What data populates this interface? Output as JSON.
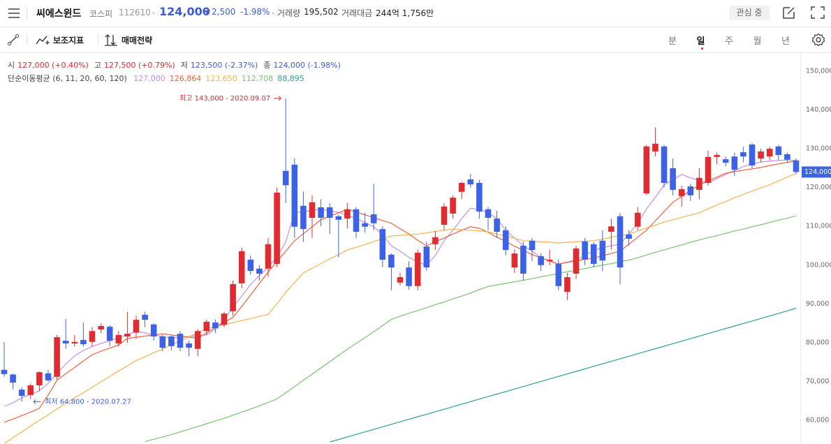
{
  "header": {
    "name": "씨에스윈드",
    "market": "코스피",
    "code": "112610",
    "price": "124,000",
    "change": "2,500",
    "change_pct": "-1.98%",
    "volume_label": "거래량",
    "volume": "195,502",
    "amount_label": "거래대금",
    "amount": "244억 1,756만",
    "watch_button": "관심 중"
  },
  "toolbar": {
    "indicators": "보조지표",
    "strategy": "매매전략",
    "periods": [
      "분",
      "일",
      "주",
      "월",
      "년"
    ],
    "selected_period": 1
  },
  "ohlc_row": {
    "items": [
      {
        "label": "시",
        "value": "127,000 (+0.40%)",
        "color": "#e0262e"
      },
      {
        "label": "고",
        "value": "127,500 (+0.79%)",
        "color": "#e0262e"
      },
      {
        "label": "저",
        "value": "123,500 (-2.37%)",
        "color": "#3a5bd9"
      },
      {
        "label": "종",
        "value": "124,000 (-1.98%)",
        "color": "#3a5bd9"
      }
    ]
  },
  "chart_data": {
    "type": "candlestick",
    "up_color": "#e02b31",
    "down_color": "#3c63e6",
    "ylim": [
      53880,
      154680
    ],
    "yticks": [
      {
        "value": 60000,
        "label": "60,000"
      },
      {
        "value": 70000,
        "label": "70,000"
      },
      {
        "value": 80000,
        "label": "80,000"
      },
      {
        "value": 90000,
        "label": "90,000"
      },
      {
        "value": 100000,
        "label": "100,000"
      },
      {
        "value": 110000,
        "label": "110,000"
      },
      {
        "value": 120000,
        "label": "120,000"
      },
      {
        "value": 130000,
        "label": "130,000"
      },
      {
        "value": 140000,
        "label": "140,000"
      },
      {
        "value": 150000,
        "label": "150,000"
      }
    ],
    "open": [
      73000,
      71800,
      67900,
      66500,
      69000,
      72100,
      71200,
      80500,
      79800,
      80700,
      80200,
      83400,
      84100,
      79800,
      81600,
      82600,
      87200,
      84700,
      81600,
      81600,
      82300,
      79800,
      78400,
      83000,
      85200,
      84600,
      88100,
      95300,
      101400,
      99100,
      99100,
      100300,
      124300,
      125900,
      115300,
      112200,
      114900,
      114900,
      112600,
      112000,
      114400,
      110800,
      113100,
      109300,
      102700,
      95500,
      99400,
      94600,
      104800,
      105400,
      110400,
      113300,
      118900,
      122100,
      121200,
      114400,
      112000,
      109000,
      99400,
      105000,
      106300,
      102300,
      101000,
      100300,
      93100,
      97800,
      106100,
      105400,
      106300,
      108600,
      112600,
      107900,
      109900,
      118500,
      129300,
      130600,
      125000,
      117800,
      120300,
      119400,
      121200,
      127900,
      127300,
      128000,
      129100,
      131100,
      127500,
      128000,
      130600,
      128600,
      127000
    ],
    "high": [
      80200,
      72000,
      68500,
      69500,
      72600,
      73000,
      82000,
      86100,
      82000,
      85200,
      84000,
      85000,
      84500,
      83000,
      88000,
      87000,
      88000,
      85000,
      82000,
      82000,
      83000,
      80500,
      83500,
      86000,
      86000,
      88000,
      96000,
      104500,
      102500,
      100000,
      107000,
      120000,
      143000,
      127500,
      119000,
      118000,
      117000,
      116000,
      113000,
      116000,
      115000,
      113500,
      121000,
      110000,
      103000,
      98000,
      101000,
      104000,
      106000,
      108800,
      116000,
      118000,
      121500,
      123500,
      122000,
      115000,
      114000,
      110000,
      104000,
      106000,
      107000,
      103000,
      104000,
      101500,
      98000,
      105000,
      107000,
      106000,
      109000,
      112000,
      113500,
      109000,
      115000,
      131000,
      135500,
      131000,
      127500,
      120500,
      121000,
      125000,
      129500,
      129000,
      128000,
      129000,
      130500,
      131500,
      130000,
      130500,
      131000,
      129000,
      127500
    ],
    "low": [
      71200,
      68000,
      64800,
      65500,
      67500,
      70000,
      70500,
      78400,
      79000,
      79000,
      79000,
      82500,
      79000,
      79000,
      80000,
      81000,
      84000,
      80500,
      77800,
      78000,
      77800,
      76500,
      76500,
      82000,
      82500,
      84000,
      87000,
      94000,
      97500,
      96000,
      97000,
      99500,
      116000,
      107000,
      106000,
      107000,
      110000,
      108000,
      102000,
      109500,
      107000,
      108400,
      109000,
      99500,
      93500,
      94800,
      93700,
      93500,
      98500,
      104000,
      109000,
      112000,
      117000,
      120000,
      112000,
      109000,
      107000,
      102500,
      98000,
      96000,
      101000,
      98500,
      100000,
      93500,
      91000,
      96500,
      100000,
      99500,
      98500,
      104000,
      95000,
      105000,
      109000,
      118000,
      128000,
      120000,
      118000,
      115000,
      116500,
      117000,
      120500,
      126000,
      125500,
      123000,
      126500,
      125000,
      126500,
      127000,
      127000,
      126500,
      123500
    ],
    "close": [
      71900,
      69700,
      66300,
      69000,
      72400,
      70300,
      81400,
      79800,
      80200,
      79600,
      83000,
      84300,
      80500,
      82000,
      82300,
      85900,
      85900,
      81600,
      78700,
      79100,
      78700,
      78700,
      83000,
      85400,
      83700,
      87500,
      95100,
      103600,
      98500,
      97800,
      105400,
      118700,
      120600,
      109900,
      109300,
      116200,
      112200,
      112200,
      111700,
      114400,
      108600,
      109900,
      110800,
      101400,
      99400,
      96900,
      94600,
      103200,
      99400,
      107200,
      115100,
      117400,
      121200,
      120800,
      113800,
      112200,
      108600,
      103900,
      103000,
      97800,
      103900,
      100000,
      101400,
      94600,
      96900,
      104300,
      101400,
      100300,
      101200,
      110000,
      99400,
      106800,
      113500,
      130600,
      131300,
      121200,
      119400,
      119600,
      118000,
      122500,
      127900,
      128400,
      126400,
      124600,
      128000,
      125700,
      129300,
      130000,
      128400,
      127200,
      124000
    ],
    "last_price_label": "124,000",
    "ma_label": "단순이동평균 (6, 11, 20, 60, 120)",
    "series": [
      {
        "color": "#c58df2",
        "last_label": "127,000",
        "values": [
          63600,
          64500,
          65800,
          66700,
          67600,
          69500,
          72000,
          74500,
          76600,
          78000,
          79000,
          79800,
          80500,
          81300,
          82100,
          82900,
          82500,
          82000,
          81600,
          81200,
          81400,
          81600,
          81800,
          82000,
          83500,
          86000,
          89200,
          92000,
          95000,
          97300,
          99500,
          102000,
          106000,
          113500,
          113800,
          114100,
          114400,
          114000,
          113600,
          112900,
          112000,
          111000,
          109900,
          107800,
          105000,
          103600,
          102000,
          100800,
          100000,
          102500,
          106300,
          109000,
          112000,
          114700,
          114300,
          113500,
          112000,
          109000,
          107000,
          105000,
          103600,
          102000,
          101000,
          100300,
          100800,
          101400,
          102500,
          103800,
          104500,
          105000,
          105400,
          108000,
          110800,
          114500,
          117500,
          120700,
          122000,
          123400,
          122500,
          121800,
          121200,
          122300,
          123400,
          124400,
          125400,
          126100,
          126600,
          126800,
          127000,
          127100,
          127000
        ]
      },
      {
        "color": "#f0603a",
        "last_label": "126,864",
        "values": [
          59500,
          60300,
          61200,
          62100,
          63100,
          66500,
          70300,
          72000,
          73600,
          75300,
          76900,
          77800,
          78600,
          79400,
          81100,
          81400,
          81700,
          82000,
          82300,
          82000,
          81700,
          81400,
          81200,
          82500,
          83900,
          85200,
          86500,
          89400,
          92300,
          95300,
          98200,
          100900,
          103600,
          106300,
          108100,
          109900,
          111700,
          112600,
          113500,
          114400,
          113700,
          113000,
          112200,
          111500,
          110800,
          109400,
          108000,
          106400,
          105000,
          106000,
          107000,
          108000,
          109000,
          109900,
          109500,
          108500,
          107200,
          106100,
          104900,
          103800,
          102700,
          101900,
          101100,
          100300,
          100700,
          101100,
          101500,
          101800,
          102400,
          103000,
          103600,
          105400,
          107200,
          109000,
          111400,
          113800,
          116200,
          117700,
          119200,
          120700,
          121700,
          122700,
          123700,
          124100,
          124500,
          124800,
          125200,
          125700,
          126100,
          126500,
          126864
        ]
      },
      {
        "color": "#f5b24a",
        "last_label": "123,650",
        "values": [
          54000,
          55500,
          57000,
          58500,
          60000,
          61400,
          62900,
          64400,
          65800,
          67100,
          68500,
          69900,
          71300,
          72700,
          74000,
          75400,
          76400,
          77400,
          78400,
          79500,
          80500,
          81500,
          82600,
          83600,
          84100,
          84600,
          85200,
          85700,
          86200,
          86800,
          87300,
          90000,
          93000,
          95500,
          98000,
          99200,
          100400,
          101600,
          102700,
          103900,
          104600,
          105300,
          106100,
          106800,
          107500,
          107700,
          107800,
          108000,
          108300,
          108700,
          109000,
          109300,
          109100,
          109000,
          108800,
          108600,
          108000,
          107500,
          106900,
          106300,
          106200,
          106000,
          105900,
          105700,
          105900,
          106000,
          106200,
          106300,
          106700,
          107200,
          107600,
          108000,
          108800,
          109600,
          110300,
          111100,
          111700,
          112300,
          112900,
          113500,
          114500,
          115500,
          116400,
          117400,
          118200,
          119100,
          119900,
          120700,
          121700,
          122700,
          123650
        ]
      },
      {
        "color": "#78c46e",
        "last_label": "112,708",
        "values": [
          null,
          null,
          null,
          null,
          null,
          null,
          null,
          null,
          null,
          null,
          null,
          null,
          null,
          null,
          null,
          null,
          54500,
          55100,
          55700,
          56300,
          57000,
          57700,
          58400,
          59100,
          59800,
          60500,
          61300,
          62100,
          62900,
          63700,
          64600,
          65500,
          67100,
          68700,
          70300,
          71900,
          73500,
          75100,
          76700,
          78300,
          79800,
          81300,
          82800,
          84400,
          86000,
          86800,
          87600,
          88300,
          89000,
          89800,
          90500,
          91300,
          92000,
          92800,
          93700,
          94500,
          94900,
          95300,
          95700,
          96100,
          96500,
          97000,
          97400,
          97800,
          98300,
          98700,
          99100,
          99600,
          100000,
          100400,
          100900,
          101300,
          101900,
          102600,
          103300,
          103900,
          104600,
          105200,
          105900,
          106500,
          107100,
          107600,
          108200,
          108800,
          109300,
          109900,
          110400,
          111000,
          111600,
          112100,
          112708
        ]
      },
      {
        "color": "#2a9d96",
        "last_label": "88,895",
        "values": [
          null,
          null,
          null,
          null,
          null,
          null,
          null,
          null,
          null,
          null,
          null,
          null,
          null,
          null,
          null,
          null,
          null,
          null,
          null,
          null,
          null,
          null,
          null,
          null,
          null,
          null,
          null,
          null,
          null,
          null,
          null,
          null,
          null,
          null,
          null,
          null,
          null,
          54400,
          55050,
          55700,
          56350,
          57000,
          57650,
          58300,
          58950,
          59600,
          60250,
          60900,
          61550,
          62200,
          62850,
          63500,
          64150,
          64800,
          65450,
          66100,
          66750,
          67400,
          68050,
          68700,
          69350,
          70000,
          70650,
          71300,
          71950,
          72600,
          73250,
          73900,
          74550,
          75200,
          75850,
          76500,
          77150,
          77800,
          78450,
          79100,
          79750,
          80400,
          81050,
          81700,
          82350,
          83000,
          83650,
          84300,
          84950,
          85600,
          86250,
          86900,
          87550,
          88200,
          88895
        ]
      }
    ],
    "high_note": {
      "text": "최고 143,000 - 2020.09.07",
      "value": 143000,
      "color": "#e0262e"
    },
    "low_note": {
      "text": "최저 64,800 - 2020.07.27",
      "value": 64800,
      "color": "#3a5bd9"
    }
  }
}
